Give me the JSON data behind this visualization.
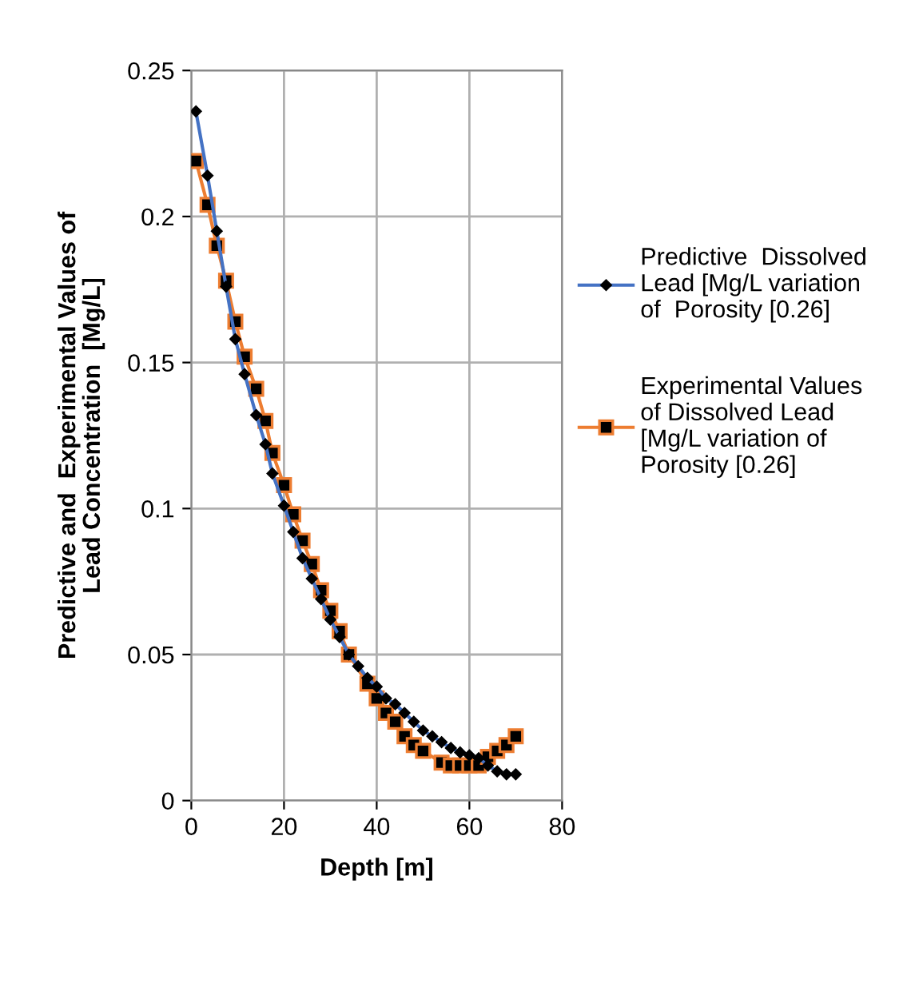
{
  "chart_data": {
    "type": "line",
    "xlabel": "Depth [m]",
    "ylabel": "Predictive and  Experimental Values of\nLead Concentration  [Mg/L]",
    "series": [
      {
        "name": "Predictive  Dissolved Lead [Mg/L variation of  Porosity [0.26]",
        "color": "#4472c4",
        "marker": "diamond",
        "x": [
          1,
          3.5,
          5.5,
          7.5,
          9.5,
          11.5,
          14,
          16,
          17.5,
          20,
          22,
          24,
          26,
          28,
          30,
          32,
          34,
          36,
          38,
          40,
          42,
          44,
          46,
          48,
          50,
          52,
          54,
          56,
          58,
          60,
          62,
          64,
          66,
          68,
          70
        ],
        "values": [
          0.236,
          0.214,
          0.195,
          0.176,
          0.158,
          0.146,
          0.132,
          0.122,
          0.112,
          0.101,
          0.092,
          0.083,
          0.076,
          0.069,
          0.062,
          0.056,
          0.05,
          0.046,
          0.042,
          0.039,
          0.035,
          0.033,
          0.03,
          0.027,
          0.024,
          0.022,
          0.02,
          0.018,
          0.0165,
          0.0155,
          0.0145,
          0.012,
          0.01,
          0.009,
          0.009
        ]
      },
      {
        "name": "Experimental Values of Dissolved Lead [Mg/L variation of Porosity [0.26]",
        "color": "#ed7d31",
        "marker": "square",
        "x": [
          1,
          3.5,
          5.5,
          7.5,
          9.5,
          11.5,
          14,
          16,
          17.5,
          20,
          22,
          24,
          26,
          28,
          30,
          32,
          34,
          38,
          40,
          42,
          44,
          46,
          48,
          50,
          54,
          56,
          58,
          60,
          62,
          64,
          66,
          68,
          70
        ],
        "values": [
          0.219,
          0.204,
          0.19,
          0.178,
          0.164,
          0.152,
          0.141,
          0.13,
          0.119,
          0.108,
          0.098,
          0.089,
          0.081,
          0.072,
          0.065,
          0.058,
          0.05,
          0.04,
          0.035,
          0.03,
          0.027,
          0.022,
          0.019,
          0.017,
          0.013,
          0.012,
          0.012,
          0.012,
          0.012,
          0.015,
          0.017,
          0.019,
          0.022
        ]
      }
    ],
    "xlim": [
      0,
      80
    ],
    "xticks": [
      0,
      20,
      40,
      60,
      80
    ],
    "ylim": [
      0,
      0.25
    ],
    "yticks": [
      0,
      0.05,
      0.1,
      0.15,
      0.2,
      0.25
    ],
    "grid": true,
    "legend": "right"
  }
}
